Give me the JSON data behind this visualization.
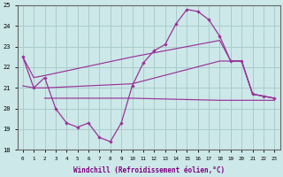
{
  "xlabel": "Windchill (Refroidissement éolien,°C)",
  "background_color": "#cce8e8",
  "grid_color": "#aacccc",
  "line_color": "#993399",
  "x_hours": [
    0,
    1,
    2,
    3,
    4,
    5,
    6,
    7,
    8,
    9,
    10,
    11,
    12,
    13,
    14,
    15,
    16,
    17,
    18,
    19,
    20,
    21,
    22,
    23
  ],
  "main_line_y": [
    22.5,
    21.0,
    21.5,
    20.0,
    19.3,
    19.1,
    19.3,
    18.6,
    18.4,
    19.3,
    21.1,
    22.2,
    22.8,
    23.1,
    24.1,
    24.8,
    24.7,
    24.3,
    23.5,
    22.3,
    22.3,
    20.7,
    20.6,
    20.5
  ],
  "upper_line": [
    [
      0,
      22.5
    ],
    [
      1,
      21.5
    ],
    [
      2,
      21.6
    ],
    [
      10,
      22.5
    ],
    [
      18,
      23.3
    ],
    [
      19,
      22.3
    ],
    [
      20,
      22.3
    ],
    [
      21,
      20.7
    ],
    [
      22,
      20.6
    ],
    [
      23,
      20.5
    ]
  ],
  "mid_line": [
    [
      0,
      21.1
    ],
    [
      1,
      21.0
    ],
    [
      2,
      21.0
    ],
    [
      10,
      21.2
    ],
    [
      18,
      22.3
    ],
    [
      19,
      22.3
    ],
    [
      20,
      22.3
    ],
    [
      21,
      20.7
    ],
    [
      22,
      20.6
    ],
    [
      23,
      20.5
    ]
  ],
  "lower_line": [
    [
      2,
      20.5
    ],
    [
      10,
      20.5
    ],
    [
      18,
      20.4
    ],
    [
      19,
      20.4
    ],
    [
      20,
      20.4
    ],
    [
      21,
      20.4
    ],
    [
      22,
      20.4
    ],
    [
      23,
      20.4
    ]
  ],
  "ylim": [
    18,
    25
  ],
  "yticks": [
    18,
    19,
    20,
    21,
    22,
    23,
    24,
    25
  ],
  "xticks": [
    0,
    1,
    2,
    3,
    4,
    5,
    6,
    7,
    8,
    9,
    10,
    11,
    12,
    13,
    14,
    15,
    16,
    17,
    18,
    19,
    20,
    21,
    22,
    23
  ]
}
